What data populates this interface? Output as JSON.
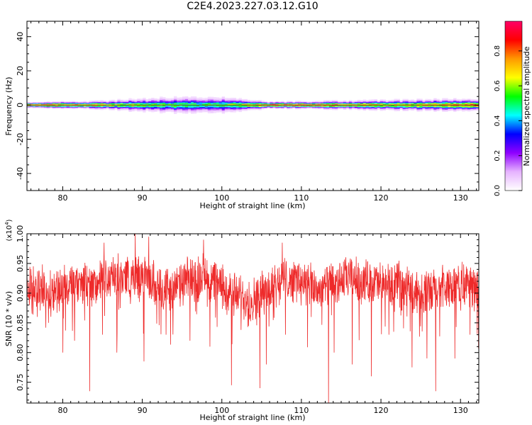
{
  "chart_data": [
    {
      "type": "heatmap",
      "title": "C2E4.2023.227.03.12.G10",
      "xlabel": "Height of straight line (km)",
      "ylabel": "Frequency (Hz)",
      "xlim": [
        75.5,
        132.3
      ],
      "ylim": [
        -50,
        49
      ],
      "x_ticks": [
        "80",
        "90",
        "100",
        "110",
        "120",
        "130"
      ],
      "y_ticks": [
        "40",
        "20",
        "0",
        "-20",
        "-40"
      ],
      "colorbar": {
        "label": "Normalized spectral amplitude",
        "range": [
          0,
          0.97
        ],
        "ticks": [
          "0.0",
          "0.2",
          "0.4",
          "0.6",
          "0.8"
        ],
        "colormap": [
          "#ffffff",
          "#e6b3ff",
          "#8f00ff",
          "#0000ff",
          "#00ffff",
          "#00ff00",
          "#ffff00",
          "#ff9900",
          "#ff0000",
          "#ff0066"
        ]
      },
      "band_profile": {
        "x": [
          76,
          80,
          84,
          88,
          92,
          96,
          100,
          104,
          106,
          110,
          114,
          118,
          122,
          126,
          130,
          132
        ],
        "halfwidth_hz": [
          1.5,
          1.8,
          2.2,
          3.0,
          3.8,
          4.2,
          4.0,
          2.5,
          1.8,
          2.0,
          2.3,
          2.5,
          2.8,
          3.0,
          3.2,
          3.0
        ],
        "peak_amplitude": [
          0.85,
          0.8,
          0.7,
          0.6,
          0.55,
          0.5,
          0.5,
          0.7,
          0.85,
          0.8,
          0.75,
          0.7,
          0.65,
          0.7,
          0.75,
          0.8
        ]
      }
    },
    {
      "type": "line",
      "xlabel": "Height of straight line (km)",
      "ylabel": "SNR (10 * v/v)",
      "y_multiplier": "(x10",
      "y_multiplier_exp": "4",
      "y_multiplier_close": ")",
      "xlim": [
        75.5,
        132.3
      ],
      "ylim": [
        0.715,
        1.0
      ],
      "x_ticks": [
        "80",
        "90",
        "100",
        "110",
        "120",
        "130"
      ],
      "y_ticks": [
        "0.75",
        "0.80",
        "0.85",
        "0.90",
        "0.95",
        "1.00"
      ],
      "series": [
        {
          "color": "#ee2a2a",
          "baseline_x": [
            75.5,
            78,
            81,
            84,
            86,
            88,
            90,
            92,
            94,
            96,
            98,
            100,
            102,
            104,
            106,
            108,
            110,
            112,
            114,
            116,
            118,
            120,
            122,
            124,
            126,
            128,
            130,
            132.3
          ],
          "baseline_y": [
            0.915,
            0.905,
            0.91,
            0.915,
            0.925,
            0.93,
            0.925,
            0.915,
            0.905,
            0.925,
            0.93,
            0.91,
            0.895,
            0.89,
            0.91,
            0.925,
            0.92,
            0.905,
            0.915,
            0.925,
            0.92,
            0.915,
            0.915,
            0.905,
            0.9,
            0.91,
            0.915,
            0.91
          ],
          "dips": [
            {
              "x": 76.8,
              "y": 0.86
            },
            {
              "x": 78.2,
              "y": 0.85
            },
            {
              "x": 80.0,
              "y": 0.8
            },
            {
              "x": 81.5,
              "y": 0.82
            },
            {
              "x": 83.4,
              "y": 0.735
            },
            {
              "x": 85.0,
              "y": 0.83
            },
            {
              "x": 86.8,
              "y": 0.8
            },
            {
              "x": 90.2,
              "y": 0.785
            },
            {
              "x": 93.0,
              "y": 0.83
            },
            {
              "x": 96.0,
              "y": 0.82
            },
            {
              "x": 98.5,
              "y": 0.81
            },
            {
              "x": 101.2,
              "y": 0.745
            },
            {
              "x": 104.8,
              "y": 0.74
            },
            {
              "x": 105.6,
              "y": 0.78
            },
            {
              "x": 108.0,
              "y": 0.83
            },
            {
              "x": 113.4,
              "y": 0.715
            },
            {
              "x": 114.1,
              "y": 0.8
            },
            {
              "x": 116.4,
              "y": 0.78
            },
            {
              "x": 118.8,
              "y": 0.76
            },
            {
              "x": 121.0,
              "y": 0.83
            },
            {
              "x": 123.9,
              "y": 0.775
            },
            {
              "x": 126.9,
              "y": 0.735
            },
            {
              "x": 129.3,
              "y": 0.79
            },
            {
              "x": 131.2,
              "y": 0.83
            }
          ],
          "spikes": [
            {
              "x": 89.1,
              "y": 1.0
            },
            {
              "x": 90.8,
              "y": 0.995
            },
            {
              "x": 97.7,
              "y": 0.99
            },
            {
              "x": 85.2,
              "y": 0.985
            },
            {
              "x": 107.6,
              "y": 0.985
            }
          ]
        }
      ]
    }
  ]
}
